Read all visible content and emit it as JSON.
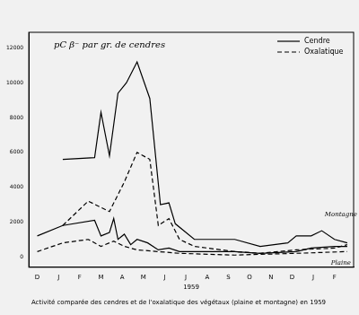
{
  "chart_data": {
    "type": "line",
    "title": "pC β⁻ par gr. de cendres",
    "subtitle": "Activité comparée des cendres et de l'oxalatique des végétaux (plaine et montagne) en 1959",
    "x_label": "1959",
    "xlim": [
      -0.4,
      14.9
    ],
    "xticks": [
      {
        "value": 0,
        "label": "D"
      },
      {
        "value": 1,
        "label": "J"
      },
      {
        "value": 2,
        "label": "F"
      },
      {
        "value": 3,
        "label": "M"
      },
      {
        "value": 4,
        "label": "A"
      },
      {
        "value": 5,
        "label": "M"
      },
      {
        "value": 6,
        "label": "J"
      },
      {
        "value": 7,
        "label": "J"
      },
      {
        "value": 8,
        "label": "A"
      },
      {
        "value": 9,
        "label": "S"
      },
      {
        "value": 10,
        "label": "O"
      },
      {
        "value": 11,
        "label": "N"
      },
      {
        "value": 12,
        "label": "D"
      },
      {
        "value": 13,
        "label": "J"
      },
      {
        "value": 14,
        "label": "F"
      }
    ],
    "ylim": [
      -600,
      12900
    ],
    "yticks": [
      0,
      2000,
      4000,
      6000,
      8000,
      10000,
      12000
    ],
    "grid": false,
    "legend": "upper right",
    "series": [
      {
        "name": "Cendre",
        "color": "#000000",
        "line_style": "solid",
        "x": [
          1.2,
          2.7,
          3.0,
          3.4,
          3.8,
          4.2,
          4.7,
          5.3,
          5.8,
          6.2,
          6.5,
          7.4,
          9.3,
          10.5,
          11.8,
          12.2,
          12.9,
          13.4,
          14.0,
          14.6
        ],
        "values": [
          5600,
          5700,
          8300,
          5800,
          9400,
          10000,
          11200,
          9100,
          3000,
          3100,
          1900,
          1000,
          1000,
          600,
          800,
          1200,
          1200,
          1500,
          1000,
          800
        ]
      },
      {
        "name": "Oxalatique",
        "color": "#000000",
        "line_style": "dashed",
        "x": [
          1.2,
          2.4,
          3.4,
          4.1,
          4.7,
          5.3,
          5.7,
          6.2,
          6.7,
          7.4,
          9.3,
          10.5,
          12.2,
          14.0,
          14.6
        ],
        "values": [
          1800,
          3200,
          2600,
          4300,
          6000,
          5600,
          1800,
          2200,
          1000,
          600,
          300,
          200,
          400,
          500,
          700
        ]
      },
      {
        "name": "Cendre",
        "color": "#000000",
        "line_style": "solid",
        "x": [
          0,
          1.2,
          2.7,
          3.0,
          3.4,
          3.6,
          3.8,
          4.1,
          4.4,
          4.7,
          5.2,
          5.7,
          6.2,
          6.7,
          9.3,
          10.5,
          12.2,
          12.9,
          14.0,
          14.6
        ],
        "values": [
          1200,
          1800,
          2100,
          1200,
          1400,
          2200,
          1000,
          1300,
          700,
          1000,
          800,
          400,
          500,
          300,
          300,
          200,
          300,
          500,
          600,
          600
        ]
      },
      {
        "name": "Oxalatique",
        "color": "#000000",
        "line_style": "dashed",
        "x": [
          0,
          1.2,
          2.4,
          3.0,
          3.6,
          4.1,
          4.7,
          5.7,
          6.7,
          9.3,
          12.2,
          14.6
        ],
        "values": [
          300,
          800,
          1000,
          600,
          900,
          600,
          400,
          300,
          200,
          100,
          200,
          300
        ]
      }
    ],
    "annotations": [
      {
        "text": "Montagne",
        "x": 14.3,
        "y": 2400
      },
      {
        "text": "Plaine",
        "x": 14.3,
        "y": -350
      }
    ]
  }
}
